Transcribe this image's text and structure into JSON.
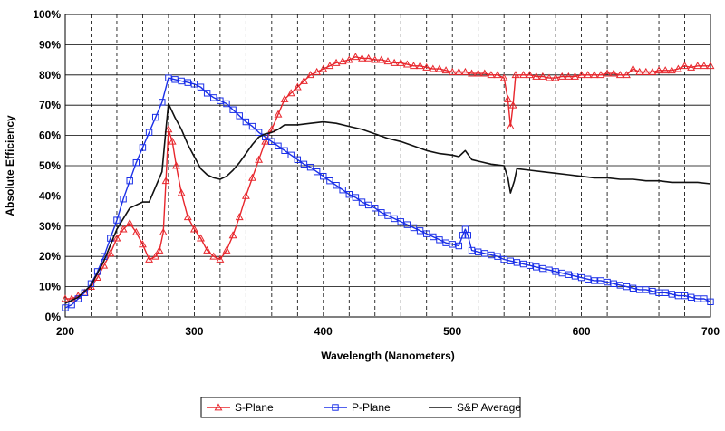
{
  "chart_data": {
    "type": "line",
    "title": "",
    "xlabel": "Wavelength (Nanometers)",
    "ylabel": "Absolute Efficiency",
    "xlim": [
      200,
      700
    ],
    "ylim": [
      0,
      100
    ],
    "x_ticks": [
      200,
      300,
      400,
      500,
      600,
      700
    ],
    "x_minor_step": 20,
    "y_ticks": [
      0,
      10,
      20,
      30,
      40,
      50,
      60,
      70,
      80,
      90,
      100
    ],
    "y_tick_labels": [
      "0%",
      "10%",
      "20%",
      "30%",
      "40%",
      "50%",
      "60%",
      "70%",
      "80%",
      "90%",
      "100%"
    ],
    "grid": true,
    "legend_position": "bottom-center",
    "series": [
      {
        "name": "S-Plane",
        "color": "#e8262c",
        "marker": "triangle",
        "points": [
          [
            200,
            6
          ],
          [
            205,
            6
          ],
          [
            210,
            7
          ],
          [
            215,
            8
          ],
          [
            220,
            10
          ],
          [
            225,
            13
          ],
          [
            230,
            17
          ],
          [
            235,
            21
          ],
          [
            240,
            26
          ],
          [
            245,
            29
          ],
          [
            250,
            31
          ],
          [
            255,
            28
          ],
          [
            260,
            24
          ],
          [
            265,
            19
          ],
          [
            270,
            20
          ],
          [
            273,
            22
          ],
          [
            276,
            28
          ],
          [
            278,
            45
          ],
          [
            280,
            62
          ],
          [
            283,
            58
          ],
          [
            286,
            50
          ],
          [
            290,
            41
          ],
          [
            295,
            33
          ],
          [
            300,
            29
          ],
          [
            305,
            26
          ],
          [
            310,
            22
          ],
          [
            315,
            20
          ],
          [
            320,
            19
          ],
          [
            325,
            22
          ],
          [
            330,
            27
          ],
          [
            335,
            33
          ],
          [
            340,
            40
          ],
          [
            345,
            46
          ],
          [
            350,
            52
          ],
          [
            355,
            58
          ],
          [
            360,
            62
          ],
          [
            365,
            67
          ],
          [
            370,
            72
          ],
          [
            375,
            74
          ],
          [
            380,
            76
          ],
          [
            385,
            78
          ],
          [
            390,
            80
          ],
          [
            395,
            81
          ],
          [
            400,
            82
          ],
          [
            405,
            83
          ],
          [
            410,
            84
          ],
          [
            415,
            84.5
          ],
          [
            420,
            85
          ],
          [
            425,
            86
          ],
          [
            430,
            85.5
          ],
          [
            435,
            85.5
          ],
          [
            440,
            85
          ],
          [
            445,
            85
          ],
          [
            450,
            84.5
          ],
          [
            455,
            84
          ],
          [
            460,
            84
          ],
          [
            465,
            83.5
          ],
          [
            470,
            83
          ],
          [
            475,
            83
          ],
          [
            480,
            82.5
          ],
          [
            485,
            82
          ],
          [
            490,
            82
          ],
          [
            495,
            81.5
          ],
          [
            500,
            81
          ],
          [
            505,
            81
          ],
          [
            510,
            81
          ],
          [
            515,
            80.5
          ],
          [
            520,
            80.5
          ],
          [
            525,
            80.5
          ],
          [
            530,
            80
          ],
          [
            535,
            80
          ],
          [
            540,
            79
          ],
          [
            543,
            72
          ],
          [
            545,
            63
          ],
          [
            547,
            70
          ],
          [
            549,
            80
          ],
          [
            555,
            80
          ],
          [
            560,
            80
          ],
          [
            565,
            79.5
          ],
          [
            570,
            79.5
          ],
          [
            575,
            79
          ],
          [
            580,
            79
          ],
          [
            585,
            79.5
          ],
          [
            590,
            79.5
          ],
          [
            595,
            79.5
          ],
          [
            600,
            80
          ],
          [
            605,
            80
          ],
          [
            610,
            80
          ],
          [
            615,
            80
          ],
          [
            620,
            80.5
          ],
          [
            625,
            80.5
          ],
          [
            630,
            80
          ],
          [
            635,
            80
          ],
          [
            640,
            82
          ],
          [
            645,
            81
          ],
          [
            650,
            81
          ],
          [
            655,
            81
          ],
          [
            660,
            81.5
          ],
          [
            665,
            81.5
          ],
          [
            670,
            81.5
          ],
          [
            675,
            82
          ],
          [
            680,
            83
          ],
          [
            685,
            82.5
          ],
          [
            690,
            83
          ],
          [
            695,
            83
          ],
          [
            700,
            83
          ]
        ]
      },
      {
        "name": "P-Plane",
        "color": "#1a2fe8",
        "marker": "square",
        "points": [
          [
            200,
            3
          ],
          [
            205,
            4
          ],
          [
            210,
            6
          ],
          [
            215,
            8
          ],
          [
            220,
            11
          ],
          [
            225,
            15
          ],
          [
            230,
            20
          ],
          [
            235,
            26
          ],
          [
            240,
            32
          ],
          [
            245,
            39
          ],
          [
            250,
            45
          ],
          [
            255,
            51
          ],
          [
            260,
            56
          ],
          [
            265,
            61
          ],
          [
            270,
            66
          ],
          [
            275,
            71
          ],
          [
            280,
            79
          ],
          [
            285,
            78.5
          ],
          [
            290,
            78
          ],
          [
            295,
            77.5
          ],
          [
            300,
            77
          ],
          [
            305,
            76
          ],
          [
            310,
            74
          ],
          [
            315,
            72.5
          ],
          [
            320,
            71.5
          ],
          [
            325,
            70.5
          ],
          [
            330,
            68.5
          ],
          [
            335,
            66.5
          ],
          [
            340,
            64.5
          ],
          [
            345,
            63
          ],
          [
            350,
            61
          ],
          [
            355,
            59.5
          ],
          [
            360,
            58
          ],
          [
            365,
            56.5
          ],
          [
            370,
            55
          ],
          [
            375,
            53.5
          ],
          [
            380,
            52
          ],
          [
            385,
            50.5
          ],
          [
            390,
            49.5
          ],
          [
            395,
            48
          ],
          [
            400,
            46.5
          ],
          [
            405,
            45
          ],
          [
            410,
            43.5
          ],
          [
            415,
            42
          ],
          [
            420,
            40.5
          ],
          [
            425,
            39.5
          ],
          [
            430,
            38
          ],
          [
            435,
            37
          ],
          [
            440,
            36
          ],
          [
            445,
            34.5
          ],
          [
            450,
            33.5
          ],
          [
            455,
            32.5
          ],
          [
            460,
            31.5
          ],
          [
            465,
            30.5
          ],
          [
            470,
            29.5
          ],
          [
            475,
            28.5
          ],
          [
            480,
            27.5
          ],
          [
            485,
            26.5
          ],
          [
            490,
            25.5
          ],
          [
            495,
            24.5
          ],
          [
            500,
            24
          ],
          [
            505,
            23.5
          ],
          [
            508,
            27
          ],
          [
            510,
            29
          ],
          [
            512,
            27
          ],
          [
            515,
            22
          ],
          [
            520,
            21.5
          ],
          [
            525,
            21
          ],
          [
            530,
            20.5
          ],
          [
            535,
            20
          ],
          [
            540,
            19
          ],
          [
            545,
            18.5
          ],
          [
            550,
            18
          ],
          [
            555,
            17.5
          ],
          [
            560,
            17
          ],
          [
            565,
            16.5
          ],
          [
            570,
            16
          ],
          [
            575,
            15.5
          ],
          [
            580,
            15
          ],
          [
            585,
            14.5
          ],
          [
            590,
            14
          ],
          [
            595,
            13.5
          ],
          [
            600,
            13
          ],
          [
            605,
            12.5
          ],
          [
            610,
            12
          ],
          [
            615,
            12
          ],
          [
            620,
            11.5
          ],
          [
            625,
            11
          ],
          [
            630,
            10.5
          ],
          [
            635,
            10
          ],
          [
            640,
            9.5
          ],
          [
            645,
            9
          ],
          [
            650,
            9
          ],
          [
            655,
            8.5
          ],
          [
            660,
            8
          ],
          [
            665,
            8
          ],
          [
            670,
            7.5
          ],
          [
            675,
            7
          ],
          [
            680,
            7
          ],
          [
            685,
            6.5
          ],
          [
            690,
            6
          ],
          [
            695,
            6
          ],
          [
            700,
            5
          ]
        ]
      },
      {
        "name": "S&P Average",
        "color": "#111111",
        "marker": "none",
        "points": [
          [
            200,
            4.5
          ],
          [
            210,
            6.5
          ],
          [
            220,
            10.5
          ],
          [
            230,
            18.5
          ],
          [
            240,
            29
          ],
          [
            250,
            36
          ],
          [
            260,
            38
          ],
          [
            265,
            38
          ],
          [
            270,
            43
          ],
          [
            275,
            48
          ],
          [
            278,
            62
          ],
          [
            280,
            70.5
          ],
          [
            285,
            66
          ],
          [
            290,
            62
          ],
          [
            295,
            57
          ],
          [
            300,
            53
          ],
          [
            305,
            49
          ],
          [
            310,
            47
          ],
          [
            315,
            46
          ],
          [
            320,
            45.5
          ],
          [
            325,
            46.5
          ],
          [
            330,
            48.5
          ],
          [
            335,
            51
          ],
          [
            340,
            54
          ],
          [
            345,
            57
          ],
          [
            350,
            59.5
          ],
          [
            355,
            60.5
          ],
          [
            360,
            61
          ],
          [
            365,
            62
          ],
          [
            370,
            63.5
          ],
          [
            380,
            63.5
          ],
          [
            390,
            64
          ],
          [
            400,
            64.5
          ],
          [
            410,
            64
          ],
          [
            420,
            63
          ],
          [
            430,
            62
          ],
          [
            440,
            60.5
          ],
          [
            450,
            59
          ],
          [
            460,
            58
          ],
          [
            470,
            56.5
          ],
          [
            480,
            55
          ],
          [
            490,
            54
          ],
          [
            500,
            53.5
          ],
          [
            505,
            53
          ],
          [
            510,
            55
          ],
          [
            515,
            52
          ],
          [
            520,
            51.5
          ],
          [
            530,
            50.5
          ],
          [
            540,
            50
          ],
          [
            543,
            46
          ],
          [
            545,
            41
          ],
          [
            548,
            45
          ],
          [
            550,
            49
          ],
          [
            560,
            48.5
          ],
          [
            570,
            48
          ],
          [
            580,
            47.5
          ],
          [
            590,
            47
          ],
          [
            600,
            46.5
          ],
          [
            610,
            46
          ],
          [
            620,
            46
          ],
          [
            630,
            45.5
          ],
          [
            640,
            45.5
          ],
          [
            650,
            45
          ],
          [
            660,
            45
          ],
          [
            670,
            44.5
          ],
          [
            680,
            44.5
          ],
          [
            690,
            44.5
          ],
          [
            700,
            44
          ]
        ]
      }
    ]
  }
}
